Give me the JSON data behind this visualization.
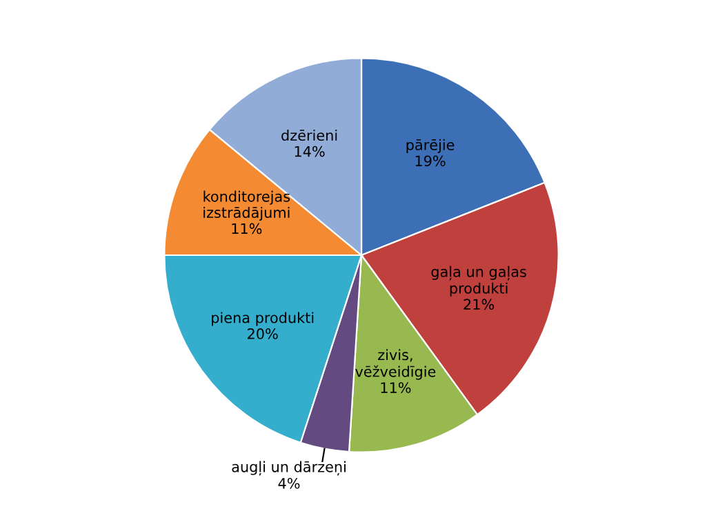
{
  "chart_data": {
    "type": "pie",
    "categories": [
      "pārējie",
      "gaļa un gaļas\nprodukti",
      "zivis,\nvēžveidīgie",
      "augļi un dārzeņi",
      "piena produkti",
      "konditorejas\nizstrādājumi",
      "dzērieni"
    ],
    "values": [
      19,
      21,
      11,
      4,
      20,
      11,
      14
    ],
    "colors": [
      "#3d6fb6",
      "#c0403d",
      "#98b94f",
      "#634a80",
      "#35adcd",
      "#f48b32",
      "#92acd8"
    ],
    "value_labels": [
      "19%",
      "21%",
      "11%",
      "4%",
      "20%",
      "11%",
      "14%"
    ],
    "legend": false
  }
}
